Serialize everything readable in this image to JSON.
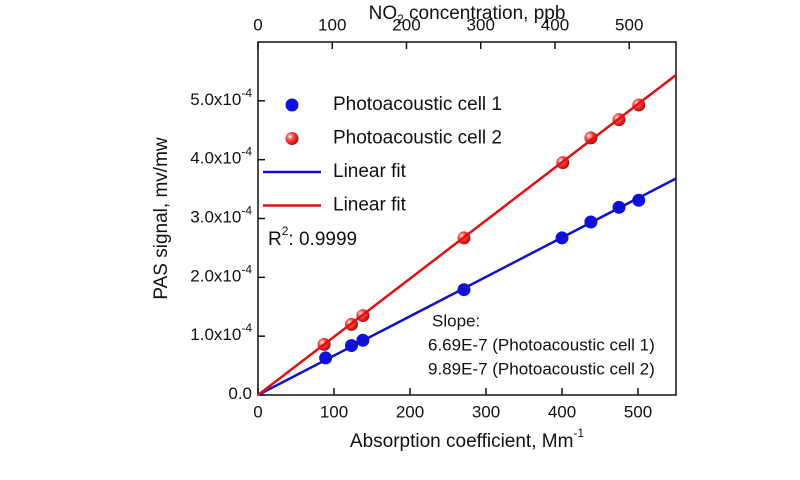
{
  "chart_data": {
    "type": "scatter",
    "xlabel": {
      "text": "Absorption coefficient, Mm",
      "sup": "-1"
    },
    "x2label": {
      "text": "NO",
      "sub": "2",
      "rest": " concentration, ppb"
    },
    "ylabel": "PAS signal, mv/mw",
    "xlim": [
      0,
      550
    ],
    "xticks": [
      0,
      100,
      200,
      300,
      400,
      500
    ],
    "x2lim": [
      0,
      563
    ],
    "x2ticks": [
      0,
      100,
      200,
      300,
      400,
      500
    ],
    "ylim": [
      0,
      0.0006
    ],
    "yticks": [
      {
        "value": 0,
        "label": "0.0"
      },
      {
        "value": 0.0001,
        "label": "1.0x10",
        "exponent": "-4"
      },
      {
        "value": 0.0002,
        "label": "2.0x10",
        "exponent": "-4"
      },
      {
        "value": 0.0003,
        "label": "3.0x10",
        "exponent": "-4"
      },
      {
        "value": 0.0004,
        "label": "4.0x10",
        "exponent": "-4"
      },
      {
        "value": 0.0005,
        "label": "5.0x10",
        "exponent": "-4"
      }
    ],
    "legend": "upper left",
    "series": [
      {
        "name": "Photoacoustic cell 1",
        "color": "#1010e0",
        "style": "marker",
        "marker": "flat",
        "x": [
          89,
          123,
          138,
          271,
          400,
          438,
          475,
          501
        ],
        "values": [
          6.3e-05,
          8.4e-05,
          9.3e-05,
          0.000179,
          0.000267,
          0.000294,
          0.000319,
          0.000331
        ]
      },
      {
        "name": "Photoacoustic cell 2",
        "color": "#e01010",
        "style": "marker",
        "marker": "sphere",
        "x": [
          87,
          123,
          138,
          271,
          401,
          438,
          475,
          501
        ],
        "values": [
          8.6e-05,
          0.00012,
          0.000135,
          0.000267,
          0.000395,
          0.000437,
          0.000468,
          0.000493
        ]
      },
      {
        "name": "Linear fit",
        "color": "#1010c8",
        "style": "line",
        "x": [
          0,
          550
        ],
        "values": [
          0,
          0.000368
        ]
      },
      {
        "name": "Linear fit",
        "color": "#e01010",
        "style": "line",
        "x": [
          0,
          550
        ],
        "values": [
          0,
          0.000544
        ]
      }
    ],
    "annotations": {
      "r2": {
        "text": "R",
        "sup": "2",
        "rest": ": 0.9999"
      },
      "slope": [
        "Slope:",
        "6.69E-7 (Photoacoustic cell 1)",
        "9.89E-7 (Photoacoustic cell 2)"
      ]
    }
  }
}
